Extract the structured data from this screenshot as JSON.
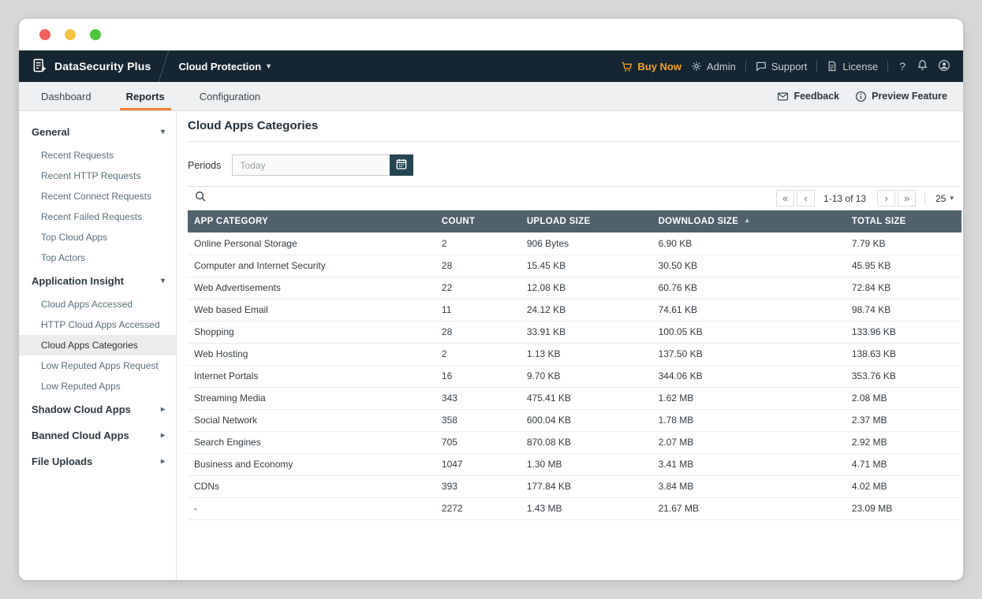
{
  "header": {
    "app_name": "DataSecurity Plus",
    "module": "Cloud Protection",
    "buy_now": "Buy Now",
    "admin": "Admin",
    "support": "Support",
    "license": "License",
    "help": "?"
  },
  "tabs": {
    "items": [
      {
        "label": "Dashboard",
        "active": false
      },
      {
        "label": "Reports",
        "active": true
      },
      {
        "label": "Configuration",
        "active": false
      }
    ],
    "feedback": "Feedback",
    "preview_feature": "Preview Feature"
  },
  "sidebar": {
    "sections": [
      {
        "label": "General",
        "expanded": true,
        "selected_item": null,
        "items": [
          "Recent Requests",
          "Recent HTTP Requests",
          "Recent Connect Requests",
          "Recent Failed Requests",
          "Top Cloud Apps",
          "Top Actors"
        ]
      },
      {
        "label": "Application Insight",
        "expanded": true,
        "selected_item": "Cloud Apps Categories",
        "items": [
          "Cloud Apps Accessed",
          "HTTP Cloud Apps Accessed",
          "Cloud Apps Categories",
          "Low Reputed Apps Request",
          "Low Reputed Apps"
        ]
      },
      {
        "label": "Shadow Cloud Apps",
        "expanded": false,
        "selected_item": null,
        "items": []
      },
      {
        "label": "Banned Cloud Apps",
        "expanded": false,
        "selected_item": null,
        "items": []
      },
      {
        "label": "File Uploads",
        "expanded": false,
        "selected_item": null,
        "items": []
      }
    ]
  },
  "main": {
    "title": "Cloud Apps Categories",
    "periods": {
      "label": "Periods",
      "placeholder": "Today"
    },
    "pagination": {
      "range": "1-13 of 13",
      "page_size": "25"
    },
    "table": {
      "columns": [
        "APP CATEGORY",
        "COUNT",
        "UPLOAD SIZE",
        "DOWNLOAD SIZE",
        "TOTAL SIZE"
      ],
      "sort": {
        "column": "DOWNLOAD SIZE",
        "direction": "asc"
      },
      "rows": [
        [
          "Online Personal Storage",
          "2",
          "906 Bytes",
          "6.90 KB",
          "7.79 KB"
        ],
        [
          "Computer and Internet Security",
          "28",
          "15.45 KB",
          "30.50 KB",
          "45.95 KB"
        ],
        [
          "Web Advertisements",
          "22",
          "12.08 KB",
          "60.76 KB",
          "72.84 KB"
        ],
        [
          "Web based Email",
          "11",
          "24.12 KB",
          "74.61 KB",
          "98.74 KB"
        ],
        [
          "Shopping",
          "28",
          "33.91 KB",
          "100.05 KB",
          "133.96 KB"
        ],
        [
          "Web Hosting",
          "2",
          "1.13 KB",
          "137.50 KB",
          "138.63 KB"
        ],
        [
          "Internet Portals",
          "16",
          "9.70 KB",
          "344.06 KB",
          "353.76 KB"
        ],
        [
          "Streaming Media",
          "343",
          "475.41 KB",
          "1.62 MB",
          "2.08 MB"
        ],
        [
          "Social Network",
          "358",
          "600.04 KB",
          "1.78 MB",
          "2.37 MB"
        ],
        [
          "Search Engines",
          "705",
          "870.08 KB",
          "2.07 MB",
          "2.92 MB"
        ],
        [
          "Business and Economy",
          "1047",
          "1.30 MB",
          "3.41 MB",
          "4.71 MB"
        ],
        [
          "CDNs",
          "393",
          "177.84 KB",
          "3.84 MB",
          "4.02 MB"
        ],
        [
          "-",
          "2272",
          "1.43 MB",
          "21.67 MB",
          "23.09 MB"
        ]
      ]
    }
  },
  "icons": {
    "first_page": "«",
    "prev_page": "‹",
    "next_page": "›",
    "last_page": "»",
    "caret_down": "▾",
    "caret_right": "▸",
    "sort_asc": "▲"
  },
  "colors": {
    "accent_orange": "#f5a623",
    "tab_underline": "#ee8030",
    "header_bg": "#152531",
    "table_header_bg": "#50616c"
  }
}
